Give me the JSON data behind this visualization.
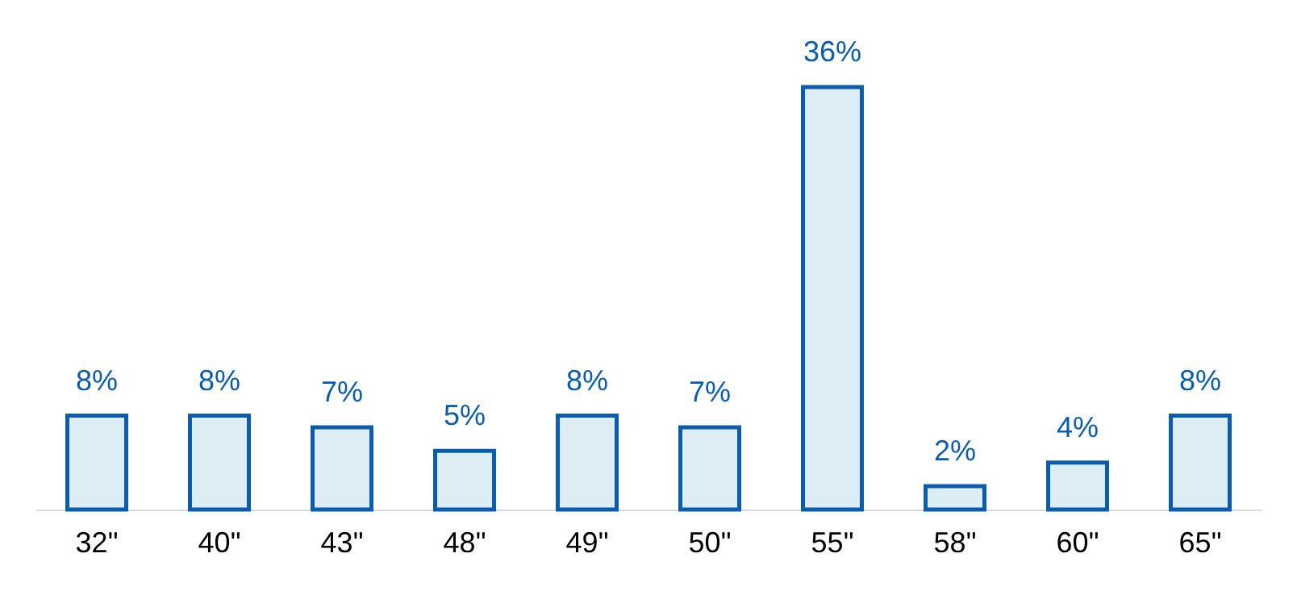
{
  "chart_data": {
    "type": "bar",
    "categories": [
      "32\"",
      "40\"",
      "43\"",
      "48\"",
      "49\"",
      "50\"",
      "55\"",
      "58\"",
      "60\"",
      "65\""
    ],
    "values": [
      8,
      8,
      7,
      5,
      8,
      7,
      36,
      2,
      4,
      8
    ],
    "value_labels": [
      "8%",
      "8%",
      "7%",
      "5%",
      "8%",
      "7%",
      "36%",
      "2%",
      "4%",
      "8%"
    ],
    "color": "#ddedf4"
  }
}
